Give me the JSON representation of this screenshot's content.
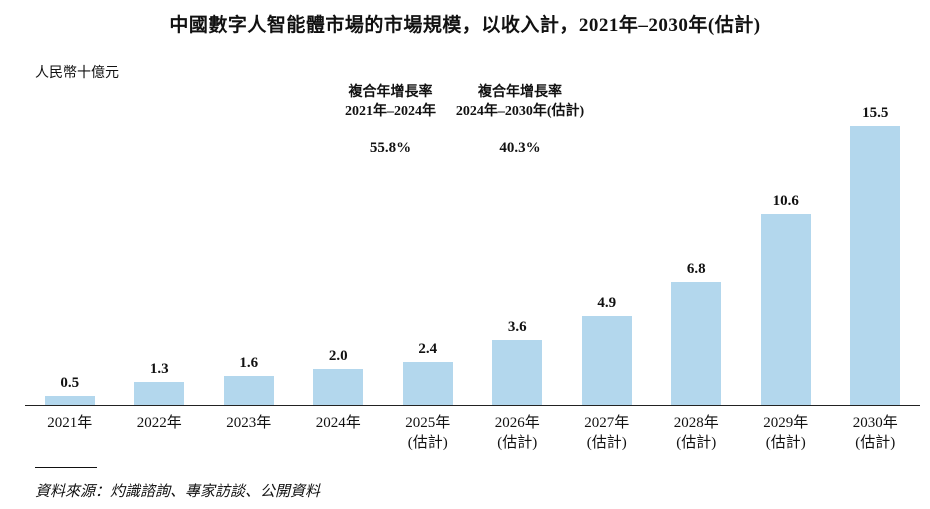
{
  "title": "中國數字人智能體市場的市場規模，以收入計，2021年–2030年(估計)",
  "unit_label": "人民幣十億元",
  "cagr": [
    {
      "line1": "複合年增長率",
      "line2": "2021年–2024年",
      "value": "55.8%"
    },
    {
      "line1": "複合年增長率",
      "line2": "2024年–2030年(估計)",
      "value": "40.3%"
    }
  ],
  "source": "資料來源：灼識諮詢、專家訪談、公開資料",
  "chart_data": {
    "type": "bar",
    "title": "中國數字人智能體市場的市場規模，以收入計，2021年–2030年(估計)",
    "ylabel": "人民幣十億元",
    "categories": [
      "2021年",
      "2022年",
      "2023年",
      "2024年",
      "2025年",
      "2026年",
      "2027年",
      "2028年",
      "2029年",
      "2030年"
    ],
    "category_notes": [
      "",
      "",
      "",
      "",
      "(估計)",
      "(估計)",
      "(估計)",
      "(估計)",
      "(估計)",
      "(估計)"
    ],
    "values": [
      0.5,
      1.3,
      1.6,
      2.0,
      2.4,
      3.6,
      4.9,
      6.8,
      10.6,
      15.5
    ],
    "ylim": [
      0,
      16
    ],
    "grid": false,
    "legend": "none",
    "bar_color": "#b3d7ed",
    "annotations": [
      {
        "label": "複合年增長率 2021年–2024年",
        "value": "55.8%"
      },
      {
        "label": "複合年增長率 2024年–2030年(估計)",
        "value": "40.3%"
      }
    ]
  }
}
